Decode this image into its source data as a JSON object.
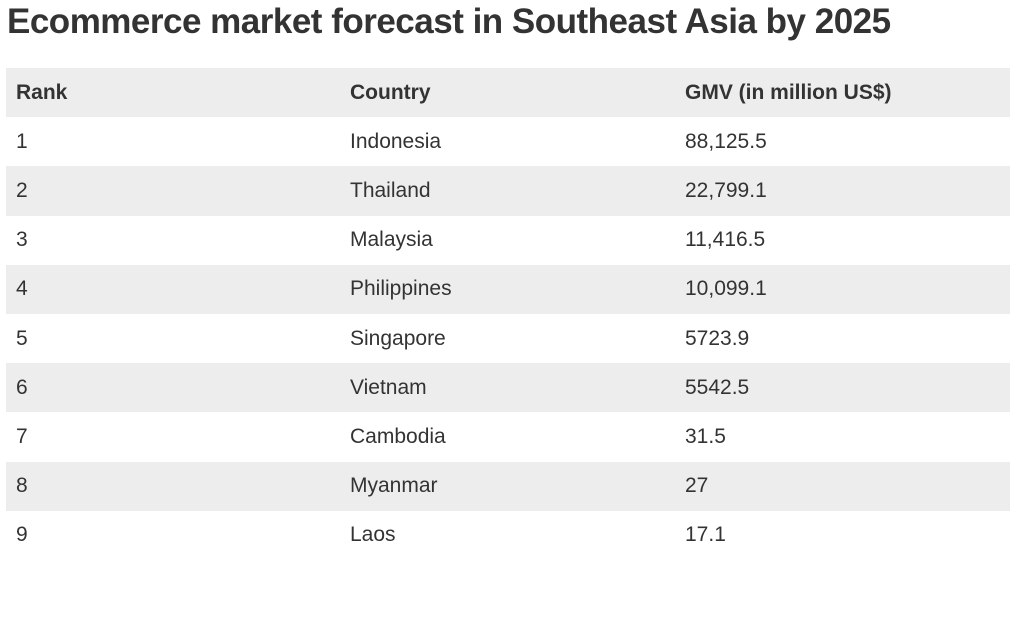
{
  "chart_data": {
    "type": "table",
    "title": "Ecommerce market forecast in Southeast Asia by 2025",
    "columns": [
      "Rank",
      "Country",
      "GMV (in million US$)"
    ],
    "rows": [
      [
        "1",
        "Indonesia",
        "88,125.5"
      ],
      [
        "2",
        "Thailand",
        "22,799.1"
      ],
      [
        "3",
        "Malaysia",
        "11,416.5"
      ],
      [
        "4",
        "Philippines",
        "10,099.1"
      ],
      [
        "5",
        "Singapore",
        "5723.9"
      ],
      [
        "6",
        "Vietnam",
        "5542.5"
      ],
      [
        "7",
        "Cambodia",
        "31.5"
      ],
      [
        "8",
        "Myanmar",
        "27"
      ],
      [
        "9",
        "Laos",
        "17.1"
      ]
    ]
  },
  "colors": {
    "text": "#333333",
    "stripe": "#ededed",
    "background": "#ffffff"
  }
}
